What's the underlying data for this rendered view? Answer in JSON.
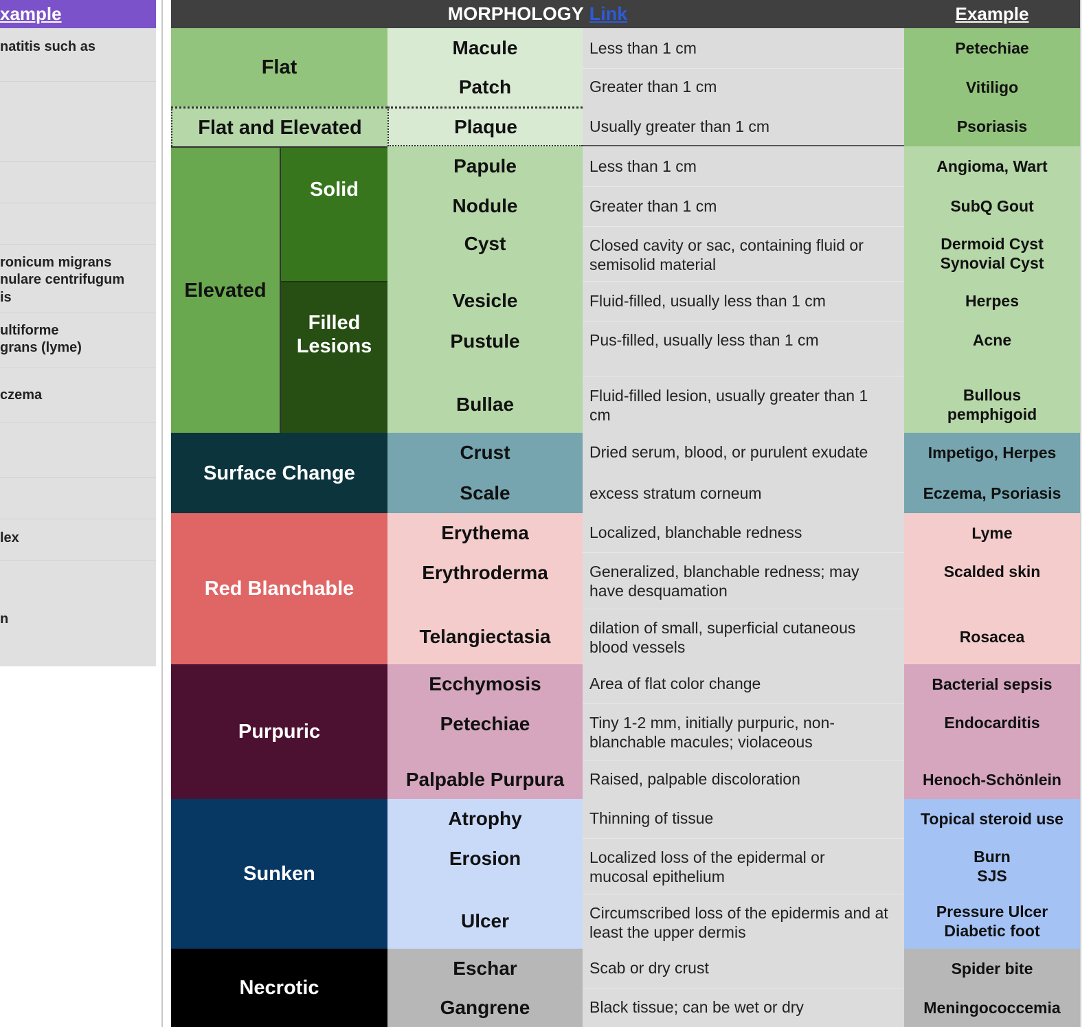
{
  "left_panel": {
    "header": "xample",
    "texts": [
      {
        "id": "l1",
        "text": "natitis such as"
      },
      {
        "id": "l2",
        "text": "ronicum migrans"
      },
      {
        "id": "l3",
        "text": "nulare centrifugum"
      },
      {
        "id": "l4",
        "text": "is"
      },
      {
        "id": "l5",
        "text": "ultiforme"
      },
      {
        "id": "l6",
        "text": "grans (lyme)"
      },
      {
        "id": "l7",
        "text": "czema"
      },
      {
        "id": "l8",
        "text": "lex"
      },
      {
        "id": "l9",
        "text": "n"
      }
    ]
  },
  "header": {
    "morphology": "MORPHOLOGY",
    "link": "Link",
    "example": "Example"
  },
  "categories": {
    "flat": "Flat",
    "flat_elevated": "Flat and Elevated",
    "elevated": "Elevated",
    "solid": "Solid",
    "filled_lesions": "Filled Lesions",
    "surface_change": "Surface Change",
    "red_blanchable": "Red Blanchable",
    "purpuric": "Purpuric",
    "sunken": "Sunken",
    "necrotic": "Necrotic"
  },
  "rows": [
    {
      "term": "Macule",
      "desc": "Less than 1 cm",
      "example": "Petechiae"
    },
    {
      "term": "Patch",
      "desc": "Greater than 1 cm",
      "example": "Vitiligo"
    },
    {
      "term": "Plaque",
      "desc": "Usually greater than 1 cm",
      "example": "Psoriasis"
    },
    {
      "term": "Papule",
      "desc": "Less than 1 cm",
      "example": "Angioma, Wart"
    },
    {
      "term": "Nodule",
      "desc": "Greater than 1 cm",
      "example": "SubQ Gout"
    },
    {
      "term": "Cyst",
      "desc": "Closed cavity or sac, containing fluid or semisolid material",
      "example": "Dermoid Cyst\nSynovial Cyst"
    },
    {
      "term": "Vesicle",
      "desc": "Fluid-filled, usually less than 1 cm",
      "example": "Herpes"
    },
    {
      "term": "Pustule",
      "desc": "Pus-filled, usually less than 1 cm",
      "example": "Acne"
    },
    {
      "term": "Bullae",
      "desc": "Fluid-filled lesion, usually greater than 1 cm",
      "example": "Bullous pemphigoid"
    },
    {
      "term": "Crust",
      "desc": "Dried serum, blood, or purulent exudate",
      "example": "Impetigo, Herpes"
    },
    {
      "term": "Scale",
      "desc": "excess stratum corneum",
      "example": "Eczema, Psoriasis"
    },
    {
      "term": "Erythema",
      "desc": "Localized, blanchable redness",
      "example": "Lyme"
    },
    {
      "term": "Erythroderma",
      "desc": "Generalized, blanchable redness; may have desquamation",
      "example": "Scalded skin"
    },
    {
      "term": "Telangiectasia",
      "desc": "dilation of small, superficial cutaneous blood vessels",
      "example": "Rosacea"
    },
    {
      "term": "Ecchymosis",
      "desc": "Area of flat color change",
      "example": "Bacterial sepsis"
    },
    {
      "term": "Petechiae",
      "desc": "Tiny 1-2 mm, initially purpuric, non-blanchable macules; violaceous",
      "example": "Endocarditis"
    },
    {
      "term": "Palpable Purpura",
      "desc": "Raised, palpable discoloration",
      "example": "Henoch-Schönlein"
    },
    {
      "term": "Atrophy",
      "desc": "Thinning of tissue",
      "example": "Topical steroid use"
    },
    {
      "term": "Erosion",
      "desc": "Localized loss of the epidermal or mucosal epithelium",
      "example": "Burn\nSJS"
    },
    {
      "term": "Ulcer",
      "desc": "Circumscribed loss of the epidermis and at least the upper dermis",
      "example": "Pressure Ulcer\nDiabetic  foot"
    },
    {
      "term": "Eschar",
      "desc": "Scab or dry crust",
      "example": "Spider bite"
    },
    {
      "term": "Gangrene",
      "desc": "Black tissue; can be wet or dry",
      "example": "Meningococcemia"
    }
  ],
  "colors": {
    "flat_green": "#93c47d",
    "light_green": "#d9ead3",
    "mid_green": "#b6d7a8",
    "elevated_green": "#6aa84f",
    "solid_green": "#38761d",
    "filled_green": "#274e13",
    "surface_dark": "#0c343d",
    "surface_teal": "#76a5af",
    "red": "#e06666",
    "pink": "#f4cccc",
    "purpuric": "#4c1130",
    "purple_light": "#d5a6bd",
    "navy": "#073763",
    "blue_light": "#c9daf8",
    "blue_mid": "#a4c2f4",
    "black": "#000000",
    "gray": "#b7b7b7"
  }
}
